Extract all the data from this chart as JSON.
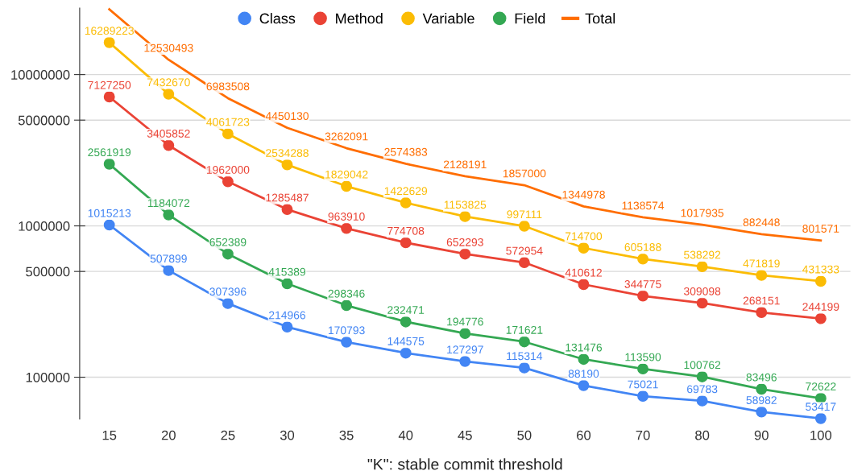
{
  "chart_data": {
    "type": "line",
    "xlabel": "\"K\": stable commit threshold",
    "categories": [
      "15",
      "20",
      "25",
      "30",
      "35",
      "40",
      "45",
      "50",
      "60",
      "70",
      "80",
      "90",
      "100"
    ],
    "log": true,
    "ylim": [
      53000,
      27500000
    ],
    "yticks": [
      100000,
      500000,
      1000000,
      5000000,
      10000000
    ],
    "grid": "y",
    "legend": "top",
    "series": [
      {
        "name": "Class",
        "color": "#4285f4",
        "marker": "circle",
        "values": [
          1015213,
          507899,
          307396,
          214966,
          170793,
          144575,
          127297,
          115314,
          88190,
          75021,
          69783,
          58982,
          53417
        ]
      },
      {
        "name": "Method",
        "color": "#ea4335",
        "marker": "circle",
        "values": [
          7127250,
          3405852,
          1962000,
          1285487,
          963910,
          774708,
          652293,
          572954,
          410612,
          344775,
          309098,
          268151,
          244199
        ]
      },
      {
        "name": "Variable",
        "color": "#fbbc04",
        "marker": "circle",
        "values": [
          16289223,
          7432670,
          4061723,
          2534288,
          1829042,
          1422629,
          1153825,
          997111,
          714700,
          605188,
          538292,
          471819,
          431333
        ]
      },
      {
        "name": "Field",
        "color": "#34a853",
        "marker": "circle",
        "values": [
          2561919,
          1184072,
          652389,
          415389,
          298346,
          232471,
          194776,
          171621,
          131476,
          113590,
          100762,
          83496,
          72622
        ]
      },
      {
        "name": "Total",
        "color": "#ff6d01",
        "marker": "none",
        "values": [
          26993605,
          12530493,
          6983508,
          4450130,
          3262091,
          2574383,
          2128191,
          1857000,
          1344978,
          1138574,
          1017935,
          882448,
          801571
        ],
        "value_labels": [
          null,
          "12530493",
          "6983508",
          "4450130",
          "3262091",
          "2574383",
          "2128191",
          "1857000",
          "1344978",
          "1138574",
          "1017935",
          "882448",
          "801571"
        ]
      }
    ],
    "data_labels": true
  }
}
